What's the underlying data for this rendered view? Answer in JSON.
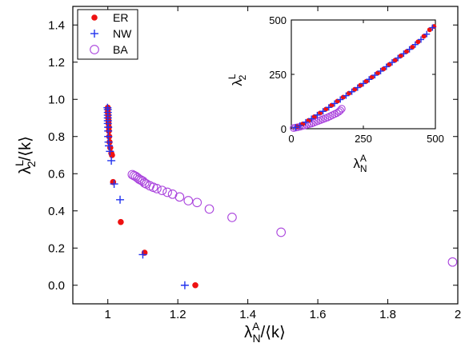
{
  "colors": {
    "ER": "#ee1111",
    "NW": "#2233ee",
    "BA": "#aa44dd"
  },
  "chart_data": [
    {
      "type": "scatter",
      "xlabel": {
        "base": "λ",
        "sup": "A",
        "sub": "N",
        "tail": "/⟨k⟩"
      },
      "ylabel": {
        "base": "λ",
        "sup": "L",
        "sub": "2",
        "tail": "/⟨k⟩"
      },
      "xlim": [
        0.9,
        2.0
      ],
      "ylim": [
        -0.1,
        1.5
      ],
      "xticks": [
        1.0,
        1.2,
        1.4,
        1.6,
        1.8,
        2.0
      ],
      "xtick_labels": [
        "1",
        "1.2",
        "1.4",
        "1.6",
        "1.8",
        "2"
      ],
      "yticks": [
        0.0,
        0.2,
        0.4,
        0.6,
        0.8,
        1.0,
        1.2,
        1.4
      ],
      "ytick_labels": [
        "0.0",
        "0.2",
        "0.4",
        "0.6",
        "0.8",
        "1.0",
        "1.2",
        "1.4"
      ],
      "grid": false,
      "legend_position": "top-left",
      "series": [
        {
          "name": "ER",
          "marker": "filled-circle",
          "points": [
            [
              1.0,
              0.955
            ],
            [
              1.0,
              0.945
            ],
            [
              1.0,
              0.93
            ],
            [
              1.001,
              0.915
            ],
            [
              1.001,
              0.9
            ],
            [
              1.002,
              0.885
            ],
            [
              1.002,
              0.87
            ],
            [
              1.003,
              0.85
            ],
            [
              1.003,
              0.83
            ],
            [
              1.004,
              0.8
            ],
            [
              1.005,
              0.77
            ],
            [
              1.007,
              0.74
            ],
            [
              1.01,
              0.71
            ],
            [
              1.012,
              0.7
            ],
            [
              1.015,
              0.555
            ],
            [
              1.037,
              0.34
            ],
            [
              1.105,
              0.175
            ],
            [
              1.25,
              0.0
            ]
          ]
        },
        {
          "name": "NW",
          "marker": "plus",
          "points": [
            [
              0.999,
              0.955
            ],
            [
              1.0,
              0.945
            ],
            [
              1.0,
              0.93
            ],
            [
              1.0,
              0.915
            ],
            [
              1.0,
              0.9
            ],
            [
              1.0,
              0.885
            ],
            [
              1.0,
              0.87
            ],
            [
              1.001,
              0.85
            ],
            [
              1.001,
              0.83
            ],
            [
              1.001,
              0.8
            ],
            [
              1.002,
              0.77
            ],
            [
              1.003,
              0.75
            ],
            [
              1.006,
              0.72
            ],
            [
              1.01,
              0.67
            ],
            [
              1.018,
              0.545
            ],
            [
              1.035,
              0.46
            ],
            [
              1.1,
              0.165
            ],
            [
              1.22,
              0.0
            ]
          ]
        },
        {
          "name": "BA",
          "marker": "open-circle",
          "points": [
            [
              1.07,
              0.595
            ],
            [
              1.075,
              0.59
            ],
            [
              1.08,
              0.585
            ],
            [
              1.085,
              0.578
            ],
            [
              1.09,
              0.57
            ],
            [
              1.095,
              0.565
            ],
            [
              1.1,
              0.56
            ],
            [
              1.105,
              0.55
            ],
            [
              1.11,
              0.545
            ],
            [
              1.12,
              0.535
            ],
            [
              1.13,
              0.527
            ],
            [
              1.14,
              0.52
            ],
            [
              1.155,
              0.51
            ],
            [
              1.17,
              0.5
            ],
            [
              1.185,
              0.49
            ],
            [
              1.205,
              0.475
            ],
            [
              1.23,
              0.455
            ],
            [
              1.255,
              0.445
            ],
            [
              1.29,
              0.41
            ],
            [
              1.355,
              0.365
            ],
            [
              1.495,
              0.285
            ],
            [
              1.985,
              0.125
            ]
          ]
        }
      ]
    },
    {
      "type": "scatter",
      "inset": true,
      "xlabel": {
        "base": "λ",
        "sup": "A",
        "sub": "N",
        "tail": ""
      },
      "ylabel": {
        "base": "λ",
        "sup": "L",
        "sub": "2",
        "tail": ""
      },
      "xlim": [
        0,
        500
      ],
      "ylim": [
        0,
        500
      ],
      "xticks": [
        0,
        250,
        500
      ],
      "xtick_labels": [
        "0",
        "250",
        "500"
      ],
      "yticks": [
        0,
        250,
        500
      ],
      "ytick_labels": [
        "0",
        "250",
        "500"
      ],
      "grid": false,
      "series": [
        {
          "name": "ER",
          "marker": "filled-circle",
          "points": [
            [
              20,
              10
            ],
            [
              40,
              22
            ],
            [
              60,
              38
            ],
            [
              80,
              55
            ],
            [
              100,
              72
            ],
            [
              120,
              90
            ],
            [
              140,
              108
            ],
            [
              160,
              127
            ],
            [
              180,
              145
            ],
            [
              200,
              163
            ],
            [
              220,
              181
            ],
            [
              240,
              200
            ],
            [
              260,
              218
            ],
            [
              280,
              237
            ],
            [
              300,
              256
            ],
            [
              320,
              275
            ],
            [
              340,
              295
            ],
            [
              360,
              315
            ],
            [
              380,
              335
            ],
            [
              400,
              355
            ],
            [
              420,
              375
            ],
            [
              440,
              400
            ],
            [
              460,
              425
            ],
            [
              480,
              455
            ],
            [
              495,
              470
            ]
          ]
        },
        {
          "name": "NW",
          "marker": "plus",
          "points": [
            [
              15,
              6
            ],
            [
              30,
              15
            ],
            [
              50,
              30
            ],
            [
              70,
              46
            ],
            [
              90,
              63
            ],
            [
              110,
              80
            ],
            [
              130,
              98
            ],
            [
              150,
              116
            ],
            [
              170,
              134
            ],
            [
              190,
              152
            ],
            [
              210,
              170
            ],
            [
              230,
              189
            ],
            [
              250,
              208
            ],
            [
              270,
              227
            ],
            [
              290,
              246
            ],
            [
              310,
              265
            ],
            [
              330,
              285
            ],
            [
              350,
              305
            ],
            [
              370,
              325
            ],
            [
              390,
              345
            ],
            [
              410,
              365
            ],
            [
              430,
              387
            ],
            [
              450,
              410
            ],
            [
              470,
              435
            ],
            [
              490,
              465
            ]
          ]
        },
        {
          "name": "BA",
          "marker": "open-circle",
          "points": [
            [
              8,
              3
            ],
            [
              15,
              5
            ],
            [
              22,
              7
            ],
            [
              30,
              9
            ],
            [
              38,
              12
            ],
            [
              46,
              15
            ],
            [
              54,
              18
            ],
            [
              62,
              21
            ],
            [
              70,
              24
            ],
            [
              78,
              28
            ],
            [
              86,
              32
            ],
            [
              94,
              36
            ],
            [
              102,
              40
            ],
            [
              110,
              44
            ],
            [
              118,
              48
            ],
            [
              126,
              52
            ],
            [
              134,
              57
            ],
            [
              142,
              62
            ],
            [
              150,
              67
            ],
            [
              158,
              72
            ],
            [
              165,
              78
            ],
            [
              170,
              84
            ],
            [
              175,
              92
            ]
          ]
        }
      ]
    }
  ]
}
